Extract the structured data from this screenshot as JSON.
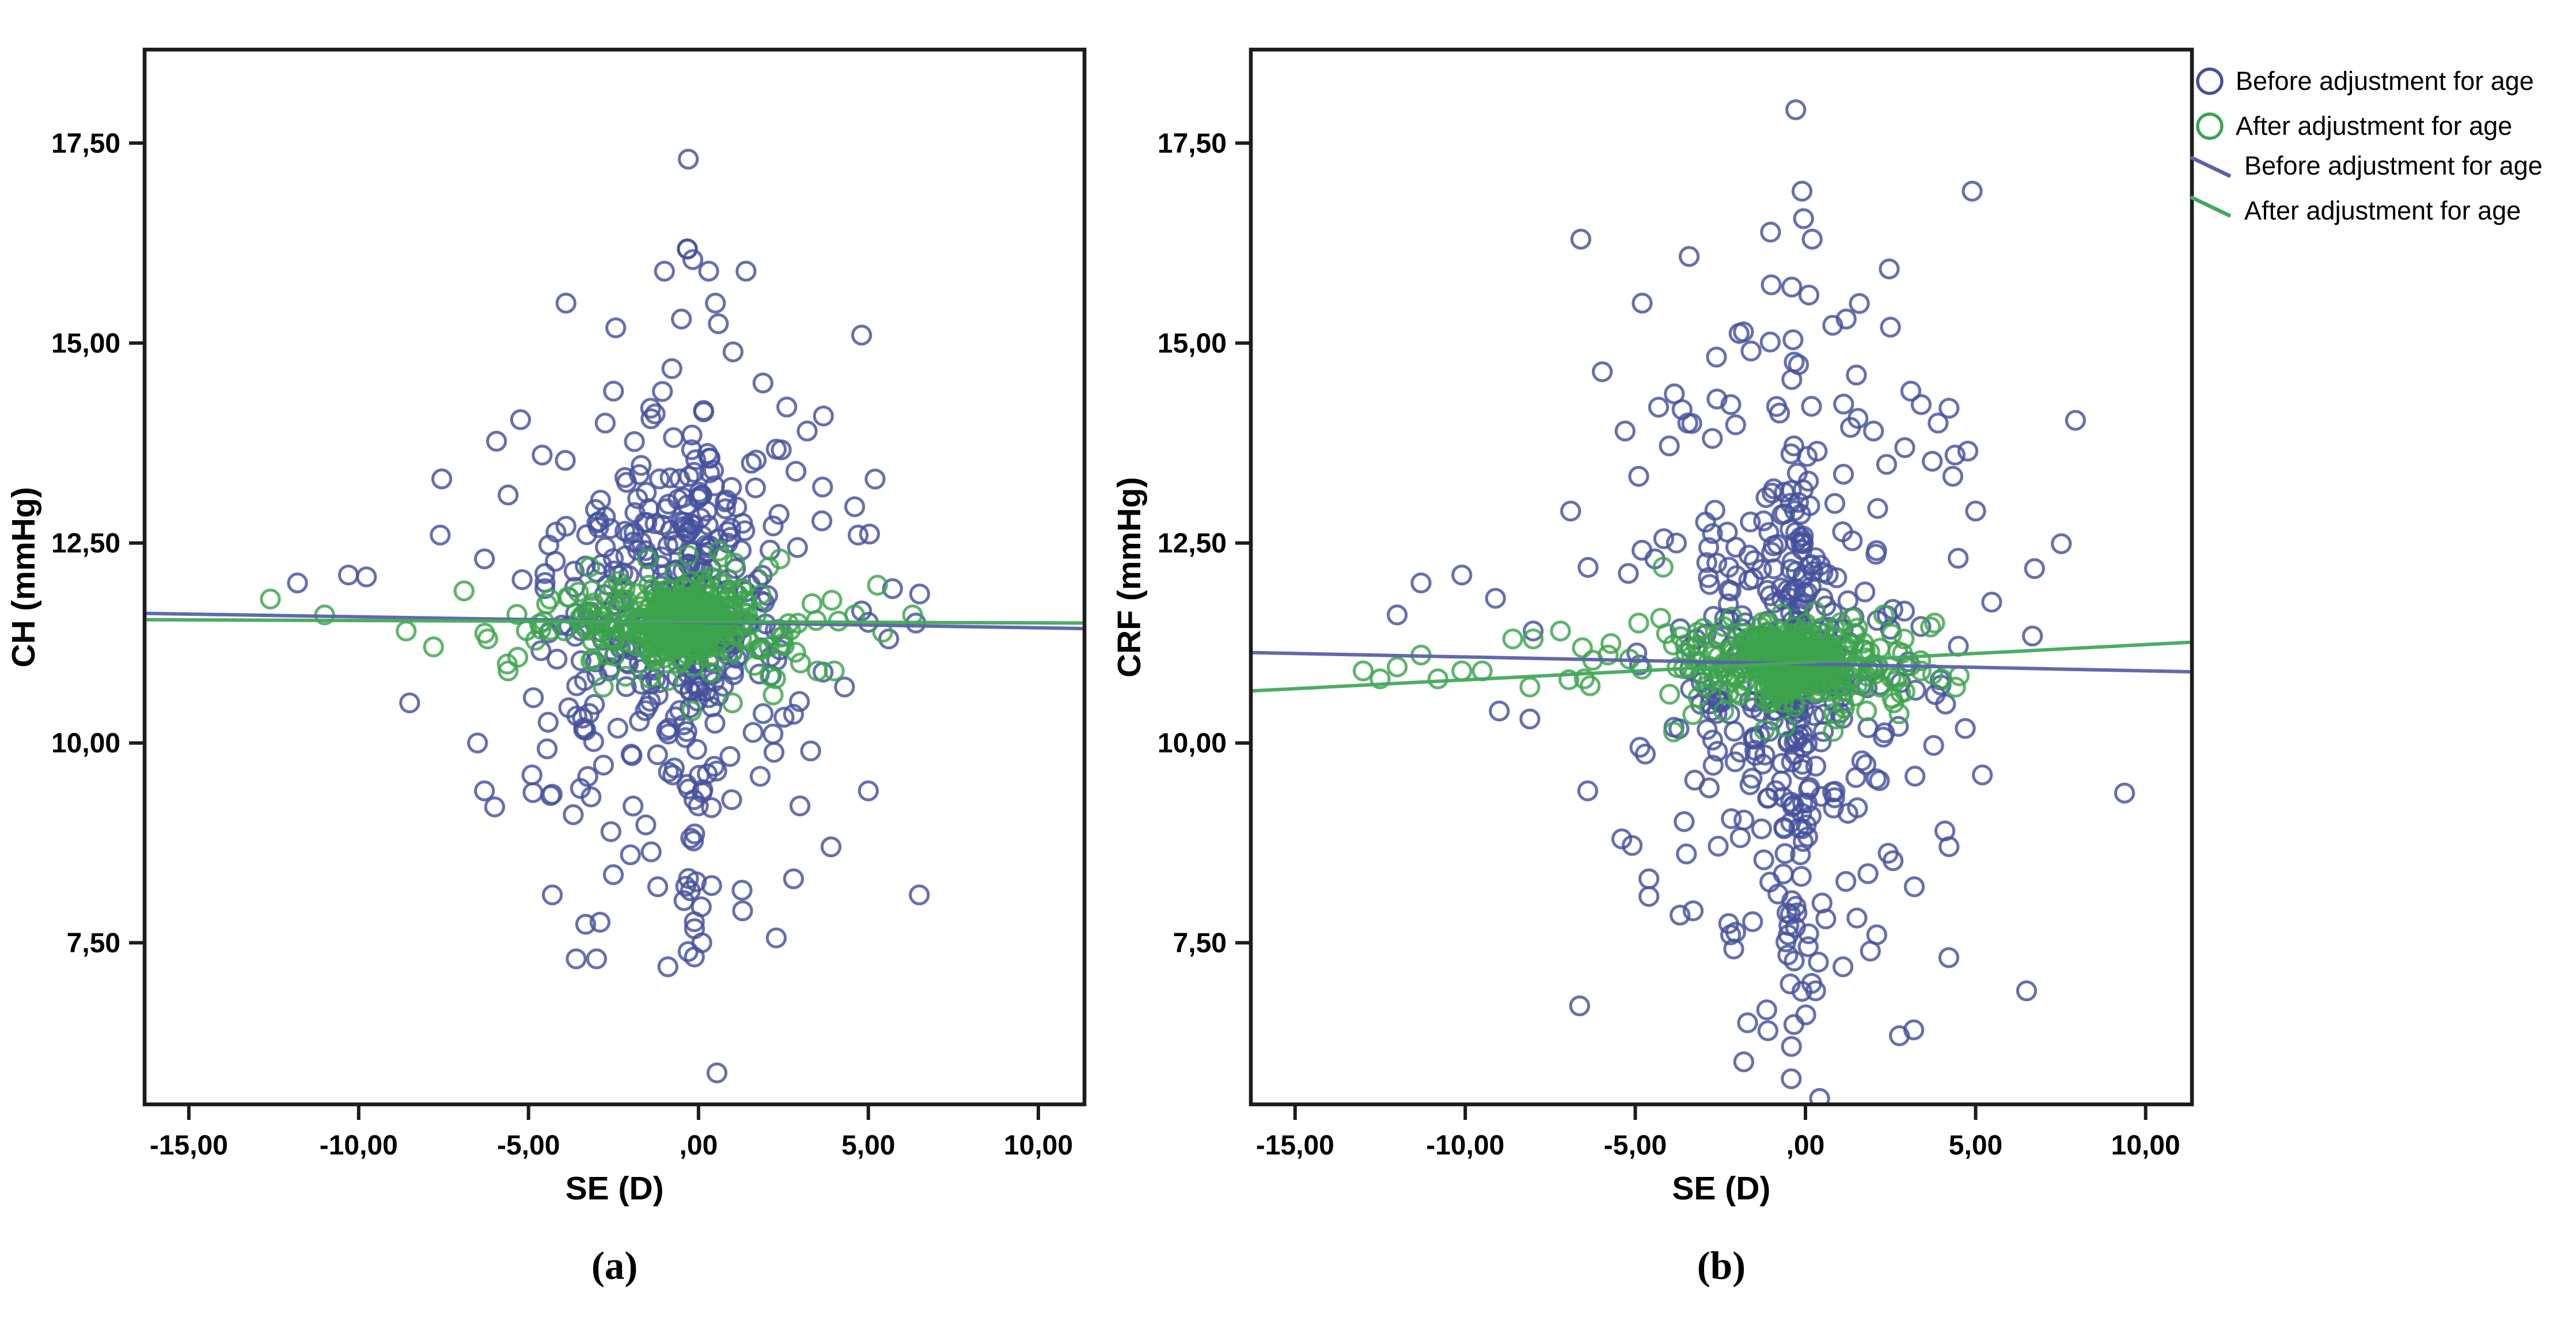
{
  "figure": {
    "background": "#FFFFFF"
  },
  "legend": {
    "items": [
      {
        "label": "Before adjustment for age",
        "marker": "circle-outline",
        "color": "#44509C"
      },
      {
        "label": "After adjustment for age",
        "marker": "circle-outline",
        "color": "#3CA34C"
      },
      {
        "label": "Before adjustment for age",
        "marker": "line",
        "color": "#5962A8"
      },
      {
        "label": "After adjustment for age",
        "marker": "line",
        "color": "#44A85C"
      }
    ]
  },
  "chart_data": [
    {
      "panel": "a",
      "caption": "(a)",
      "type": "scatter",
      "xlabel": "SE (D)",
      "ylabel": "CH (mmHg)",
      "xlim": [
        -16.3,
        11.36
      ],
      "ylim": [
        5.48,
        18.67
      ],
      "grid": false,
      "x_ticks": {
        "values": [
          -15,
          -10,
          -5,
          0,
          5,
          10
        ],
        "labels": [
          "-15,00",
          "-10,00",
          "-5,00",
          ",00",
          "5,00",
          "10,00"
        ]
      },
      "y_ticks": {
        "values": [
          17.5,
          15,
          12.5,
          10,
          7.5
        ],
        "labels": [
          "17,50",
          "15,00",
          "12,50",
          "10,00",
          "7,50"
        ]
      },
      "series": [
        {
          "name": "Before adjustment for age",
          "marker": "circle",
          "color": "#44509C",
          "points": [
            [
              -0.3,
              17.3
            ],
            [
              -3.9,
              15.5
            ],
            [
              -1.0,
              15.9
            ],
            [
              0.3,
              15.9
            ],
            [
              -0.5,
              15.3
            ],
            [
              0.5,
              15.5
            ],
            [
              1.4,
              15.9
            ],
            [
              4.8,
              15.1
            ],
            [
              -2.5,
              14.4
            ],
            [
              1.9,
              14.5
            ],
            [
              2.6,
              14.2
            ],
            [
              3.2,
              13.9
            ],
            [
              -4.6,
              13.6
            ],
            [
              -5.6,
              13.1
            ],
            [
              -11.8,
              12.0
            ],
            [
              -10.3,
              12.1
            ],
            [
              -7.6,
              12.6
            ],
            [
              -6.3,
              12.3
            ],
            [
              -8.5,
              10.5
            ],
            [
              -6.5,
              10.0
            ],
            [
              -6.0,
              9.2
            ],
            [
              -4.3,
              8.1
            ],
            [
              -3.6,
              7.3
            ],
            [
              -3.0,
              7.3
            ],
            [
              -0.9,
              7.2
            ],
            [
              0.1,
              7.5
            ],
            [
              1.3,
              7.9
            ],
            [
              2.8,
              8.3
            ],
            [
              3.9,
              8.7
            ],
            [
              5.0,
              9.4
            ],
            [
              6.5,
              8.1
            ],
            [
              3.3,
              9.9
            ],
            [
              4.3,
              10.7
            ],
            [
              5.6,
              11.3
            ],
            [
              6.4,
              11.5
            ],
            [
              -2.0,
              8.6
            ],
            [
              -1.2,
              8.2
            ],
            [
              4.7,
              12.6
            ],
            [
              5.2,
              13.3
            ],
            [
              -4.9,
              9.6
            ]
          ],
          "clusters": [
            {
              "n": 230,
              "cx": -0.7,
              "cy": 11.7,
              "sx": 1.7,
              "sy": 1.05,
              "seed": 101
            },
            {
              "n": 85,
              "cx": -0.15,
              "cy": 11.4,
              "sx": 0.22,
              "sy": 1.65,
              "seed": 102
            },
            {
              "n": 115,
              "cx": -0.8,
              "cy": 11.4,
              "sx": 3.0,
              "sy": 1.8,
              "seed": 103
            }
          ]
        },
        {
          "name": "After adjustment for age",
          "marker": "circle",
          "color": "#3CA34C",
          "points": [
            [
              -12.6,
              11.8
            ],
            [
              -11.0,
              11.6
            ],
            [
              -8.6,
              11.4
            ],
            [
              -7.8,
              11.2
            ],
            [
              -6.9,
              11.9
            ],
            [
              -6.2,
              11.3
            ],
            [
              -5.6,
              10.9
            ],
            [
              3.0,
              11.0
            ],
            [
              3.5,
              10.9
            ],
            [
              4.0,
              10.9
            ],
            [
              4.6,
              11.6
            ],
            [
              6.3,
              11.6
            ],
            [
              2.4,
              12.3
            ],
            [
              -1.5,
              12.3
            ],
            [
              0.6,
              12.4
            ],
            [
              1.0,
              10.5
            ],
            [
              -0.2,
              10.4
            ],
            [
              2.2,
              10.6
            ],
            [
              -3.2,
              12.2
            ],
            [
              -2.8,
              10.7
            ]
          ],
          "clusters": [
            {
              "n": 130,
              "cx": -0.3,
              "cy": 11.5,
              "sx": 0.45,
              "sy": 0.16,
              "seed": 104
            },
            {
              "n": 220,
              "cx": -0.4,
              "cy": 11.55,
              "sx": 1.1,
              "sy": 0.25,
              "seed": 105
            },
            {
              "n": 110,
              "cx": -0.9,
              "cy": 11.45,
              "sx": 2.4,
              "sy": 0.33,
              "seed": 106
            }
          ]
        }
      ],
      "fit_lines": [
        {
          "name": "Before adjustment for age",
          "color": "#5962A8",
          "x": [
            -16.3,
            11.36
          ],
          "y": [
            11.62,
            11.43
          ]
        },
        {
          "name": "After adjustment for age",
          "color": "#44A85C",
          "x": [
            -16.3,
            11.36
          ],
          "y": [
            11.54,
            11.5
          ]
        }
      ]
    },
    {
      "panel": "b",
      "caption": "(b)",
      "type": "scatter",
      "xlabel": "SE (D)",
      "ylabel": "CRF (mmHg)",
      "xlim": [
        -16.3,
        11.36
      ],
      "ylim": [
        5.48,
        18.67
      ],
      "grid": false,
      "x_ticks": {
        "values": [
          -15,
          -10,
          -5,
          0,
          5,
          10
        ],
        "labels": [
          "-15,00",
          "-10,00",
          "-5,00",
          ",00",
          "5,00",
          "10,00"
        ]
      },
      "y_ticks": {
        "values": [
          17.5,
          15,
          12.5,
          10,
          7.5
        ],
        "labels": [
          "17,50",
          "15,00",
          "12,50",
          "10,00",
          "7,50"
        ]
      },
      "series": [
        {
          "name": "Before adjustment for age",
          "marker": "circle",
          "color": "#44509C",
          "points": [
            [
              -0.1,
              16.9
            ],
            [
              4.9,
              16.9
            ],
            [
              0.2,
              16.3
            ],
            [
              -6.6,
              16.3
            ],
            [
              -4.8,
              15.5
            ],
            [
              -0.4,
              15.7
            ],
            [
              0.1,
              15.6
            ],
            [
              1.2,
              15.3
            ],
            [
              2.5,
              15.2
            ],
            [
              -1.6,
              14.9
            ],
            [
              3.1,
              14.4
            ],
            [
              3.9,
              14.0
            ],
            [
              -5.3,
              13.9
            ],
            [
              -6.9,
              12.9
            ],
            [
              -12.0,
              11.6
            ],
            [
              -11.3,
              12.0
            ],
            [
              -10.1,
              12.1
            ],
            [
              -8.0,
              11.4
            ],
            [
              -8.1,
              10.3
            ],
            [
              -6.4,
              9.4
            ],
            [
              -5.4,
              8.8
            ],
            [
              -4.6,
              8.3
            ],
            [
              -3.3,
              7.9
            ],
            [
              -2.2,
              7.6
            ],
            [
              -1.1,
              6.4
            ],
            [
              -1.7,
              6.5
            ],
            [
              0.3,
              6.9
            ],
            [
              1.1,
              7.2
            ],
            [
              2.1,
              7.6
            ],
            [
              3.2,
              8.2
            ],
            [
              4.1,
              8.9
            ],
            [
              6.5,
              6.9
            ],
            [
              5.2,
              9.6
            ],
            [
              -0.5,
              7.6
            ],
            [
              0.6,
              7.8
            ],
            [
              2.0,
              13.9
            ],
            [
              -2.6,
              14.3
            ],
            [
              1.5,
              14.6
            ],
            [
              4.4,
              13.6
            ],
            [
              5.0,
              12.9
            ],
            [
              -9.0,
              10.4
            ]
          ],
          "clusters": [
            {
              "n": 220,
              "cx": -0.5,
              "cy": 11.1,
              "sx": 1.8,
              "sy": 1.5,
              "seed": 201
            },
            {
              "n": 90,
              "cx": -0.25,
              "cy": 11.0,
              "sx": 0.22,
              "sy": 2.3,
              "seed": 202
            },
            {
              "n": 120,
              "cx": -0.6,
              "cy": 10.9,
              "sx": 3.1,
              "sy": 2.4,
              "seed": 203
            }
          ]
        },
        {
          "name": "After adjustment for age",
          "marker": "circle",
          "color": "#3CA34C",
          "points": [
            [
              -13.0,
              10.9
            ],
            [
              -12.5,
              10.8
            ],
            [
              -12.0,
              10.95
            ],
            [
              -11.3,
              11.1
            ],
            [
              -10.8,
              10.8
            ],
            [
              -10.1,
              10.9
            ],
            [
              -9.5,
              10.9
            ],
            [
              -8.6,
              11.3
            ],
            [
              -8.1,
              10.7
            ],
            [
              -8.0,
              11.3
            ],
            [
              -7.2,
              11.4
            ],
            [
              -6.5,
              10.8
            ],
            [
              -5.8,
              11.1
            ],
            [
              -4.9,
              11.5
            ],
            [
              2.9,
              11.3
            ],
            [
              3.4,
              10.9
            ],
            [
              4.0,
              10.8
            ],
            [
              2.3,
              11.6
            ],
            [
              1.8,
              10.4
            ],
            [
              -0.6,
              10.2
            ],
            [
              0.9,
              10.3
            ],
            [
              -2.4,
              10.4
            ],
            [
              2.6,
              10.5
            ],
            [
              3.8,
              11.5
            ]
          ],
          "clusters": [
            {
              "n": 130,
              "cx": -0.4,
              "cy": 10.95,
              "sx": 0.5,
              "sy": 0.15,
              "seed": 204
            },
            {
              "n": 210,
              "cx": -0.5,
              "cy": 11.0,
              "sx": 1.15,
              "sy": 0.25,
              "seed": 205
            },
            {
              "n": 110,
              "cx": -1.0,
              "cy": 10.95,
              "sx": 2.5,
              "sy": 0.32,
              "seed": 206
            }
          ]
        }
      ],
      "fit_lines": [
        {
          "name": "Before adjustment for age",
          "color": "#5962A8",
          "x": [
            -16.3,
            11.36
          ],
          "y": [
            11.13,
            10.89
          ]
        },
        {
          "name": "After adjustment for age",
          "color": "#44A85C",
          "x": [
            -16.3,
            11.36
          ],
          "y": [
            10.65,
            11.26
          ]
        }
      ]
    }
  ]
}
